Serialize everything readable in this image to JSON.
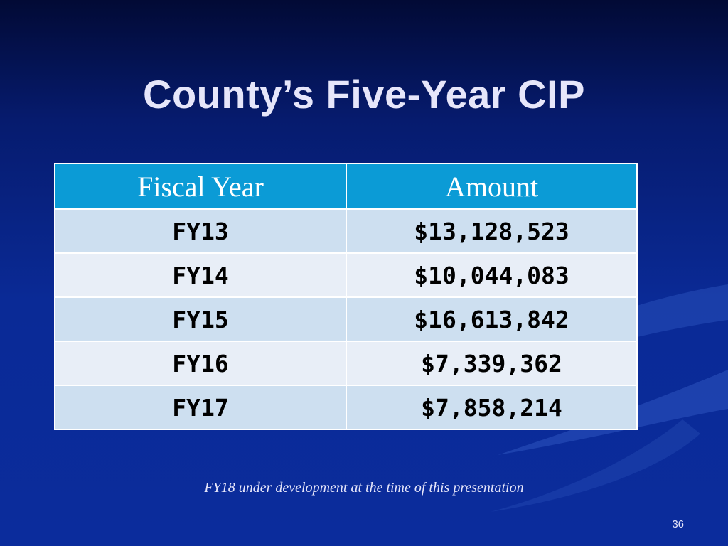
{
  "slide": {
    "title": "County’s Five-Year CIP",
    "footnote": "FY18 under development at the time of  this presentation",
    "page_number": "36"
  },
  "table": {
    "headers": [
      "Fiscal Year",
      "Amount"
    ],
    "rows": [
      {
        "year": "FY13",
        "amount": "$13,128,523"
      },
      {
        "year": "FY14",
        "amount": "$10,044,083"
      },
      {
        "year": "FY15",
        "amount": "$16,613,842"
      },
      {
        "year": "FY16",
        "amount": "$7,339,362"
      },
      {
        "year": "FY17",
        "amount": "$7,858,214"
      }
    ]
  },
  "colors": {
    "background": "#0a2a96",
    "header_fill": "#0b9bd6",
    "row_fill_a": "#cddff0",
    "row_fill_b": "#e8eef7",
    "title_text": "#e6e6fa"
  }
}
